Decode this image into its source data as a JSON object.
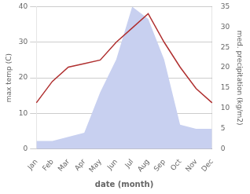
{
  "chart_data": {
    "type": "line",
    "categories": [
      "Jan",
      "Feb",
      "Mar",
      "Apr",
      "May",
      "Jun",
      "Jul",
      "Aug",
      "Sep",
      "Oct",
      "Nov",
      "Dec"
    ],
    "xlabel": "date (month)",
    "ylabel": "max temp (C)",
    "y2label": "med. precipitation (kg/m2)",
    "series": [
      {
        "type": "line",
        "color": "#b03030",
        "values": [
          13,
          19,
          23,
          24,
          25,
          30,
          34,
          38,
          30,
          23,
          17,
          13
        ]
      },
      {
        "type": "area",
        "color": "#c8d0f0",
        "axis": "y2",
        "values": [
          2,
          2,
          3,
          4,
          14,
          22,
          35,
          32,
          22,
          6,
          5,
          5
        ]
      }
    ],
    "ylim": [
      0,
      40
    ],
    "yticks": [
      0,
      10,
      20,
      30,
      40
    ],
    "y2lim": [
      0,
      35
    ],
    "y2ticks": [
      0,
      5,
      10,
      15,
      20,
      25,
      30,
      35
    ],
    "grid": true
  }
}
